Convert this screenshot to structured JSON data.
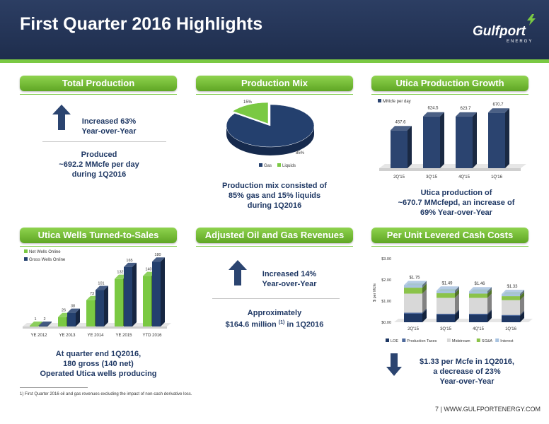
{
  "header": {
    "title": "First Quarter 2016 Highlights"
  },
  "logo": {
    "name": "Gulfport",
    "sub": "ENERGY"
  },
  "panels": {
    "total_production": {
      "title": "Total Production",
      "increase_line1": "Increased 63%",
      "increase_line2": "Year-over-Year",
      "produced_line1": "Produced",
      "produced_line2": "~692.2 MMcfe per day",
      "produced_line3": "during 1Q2016"
    },
    "production_mix": {
      "title": "Production Mix",
      "caption_line1": "Production mix consisted of",
      "caption_line2": "85% gas and 15% liquids",
      "caption_line3": "during 1Q2016"
    },
    "utica_growth": {
      "title": "Utica Production Growth",
      "caption_line1": "Utica production of",
      "caption_line2": "~670.7 MMcfepd, an increase of",
      "caption_line3": "69% Year-over-Year"
    },
    "utica_wells": {
      "title": "Utica Wells Turned-to-Sales",
      "caption_line1": "At quarter end 1Q2016,",
      "caption_line2": "180 gross (140 net)",
      "caption_line3": "Operated Utica wells producing"
    },
    "revenues": {
      "title": "Adjusted Oil and Gas Revenues",
      "increase_line1": "Increased 14%",
      "increase_line2": "Year-over-Year",
      "approx_line1": "Approximately",
      "approx_line2a": "$164.6 million ",
      "approx_sup": "(1)",
      "approx_line2b": " in 1Q2016"
    },
    "cash_costs": {
      "title": "Per Unit Levered Cash Costs",
      "caption_line1": "$1.33 per Mcfe in 1Q2016,",
      "caption_line2": "a decrease of 23%",
      "caption_line3": "Year-over-Year"
    }
  },
  "footnote": "1)     First Quarter 2016 oil and gas revenues excluding the impact of non-cash derivative loss.",
  "page": "7 | WWW.GULFPORTENERGY.COM",
  "colors": {
    "navy": "#1f3864",
    "green": "#7ac943",
    "bar": "#2b4470"
  },
  "chart_data": [
    {
      "type": "pie",
      "categories": [
        "Gas",
        "Liquids"
      ],
      "values": [
        85,
        15
      ],
      "labels": [
        "85%",
        "15%"
      ],
      "colors": [
        "#24406e",
        "#7ac943"
      ],
      "legend": "bottom"
    },
    {
      "type": "bar",
      "categories": [
        "2Q'15",
        "3Q'15",
        "4Q'15",
        "1Q'16"
      ],
      "series": [
        {
          "name": "MMcfe per day",
          "values": [
            457.6,
            624.5,
            623.7,
            670.7
          ]
        }
      ],
      "data_labels": [
        "457.6",
        "624.5",
        "623.7",
        "670.7"
      ],
      "ylim": [
        0,
        750
      ],
      "legend": "top-left"
    },
    {
      "type": "bar",
      "categories": [
        "YE 2012",
        "YE 2013",
        "YE 2014",
        "YE 2015",
        "YTD 2016"
      ],
      "series": [
        {
          "name": "Net Wells Online",
          "values": [
            1,
            26,
            73,
            132,
            140
          ],
          "color": "#7ac943"
        },
        {
          "name": "Gross Wells Online",
          "values": [
            2,
            38,
            101,
            165,
            180
          ],
          "color": "#24406e"
        }
      ],
      "ylim": [
        0,
        200
      ],
      "legend": "top-left"
    },
    {
      "type": "bar",
      "stacked": true,
      "categories": [
        "2Q'15",
        "3Q'15",
        "4Q'15",
        "1Q'16"
      ],
      "series": [
        {
          "name": "LOE",
          "values": [
            0.4,
            0.35,
            0.35,
            0.3
          ],
          "color": "#1f3864"
        },
        {
          "name": "Production Taxes",
          "values": [
            0.05,
            0.05,
            0.05,
            0.04
          ],
          "color": "#4e6a9c"
        },
        {
          "name": "Midstream",
          "values": [
            0.9,
            0.75,
            0.75,
            0.7
          ],
          "color": "#d8d8d8"
        },
        {
          "name": "SG&A",
          "values": [
            0.28,
            0.22,
            0.2,
            0.19
          ],
          "color": "#8bc34a"
        },
        {
          "name": "Interest",
          "values": [
            0.12,
            0.12,
            0.11,
            0.1
          ],
          "color": "#a9c3e0"
        }
      ],
      "totals": [
        "$1.75",
        "$1.49",
        "$1.46",
        "$1.33"
      ],
      "yticks": [
        "$0.00",
        "$1.00",
        "$2.00",
        "$3.00"
      ],
      "ylabel": "$ per Mcfe",
      "ylim": [
        0,
        3
      ],
      "legend": "bottom"
    }
  ]
}
